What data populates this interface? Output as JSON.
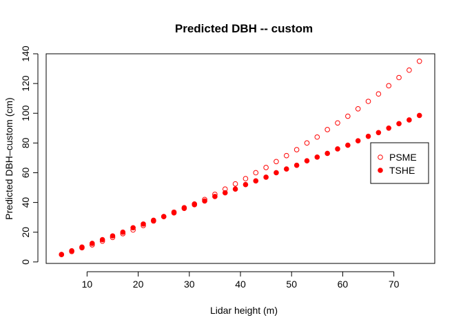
{
  "chart_data": {
    "type": "scatter",
    "title": "Predicted DBH -- custom",
    "xlabel": "Lidar height (m)",
    "ylabel": "Predicted DBH–custom (cm)",
    "xlim": [
      2,
      78
    ],
    "ylim": [
      -1,
      140
    ],
    "xticks": [
      10,
      20,
      30,
      40,
      50,
      60,
      70
    ],
    "yticks": [
      0,
      20,
      40,
      60,
      80,
      100,
      120,
      140
    ],
    "grid": false,
    "legend_position": "right",
    "x": [
      5,
      7,
      9,
      11,
      13,
      15,
      17,
      19,
      21,
      23,
      25,
      27,
      29,
      31,
      33,
      35,
      37,
      39,
      41,
      43,
      45,
      47,
      49,
      51,
      53,
      55,
      57,
      59,
      61,
      63,
      65,
      67,
      69,
      71,
      73,
      75
    ],
    "series": [
      {
        "name": "PSME",
        "marker": "open-circle",
        "color": "#ff0000",
        "values": [
          5,
          7,
          9.5,
          11.5,
          14,
          16.5,
          19,
          21.5,
          24.5,
          27.5,
          30.5,
          33.5,
          36.5,
          39,
          42,
          45.5,
          49,
          52.5,
          56,
          60,
          63.5,
          67.5,
          71.5,
          75.5,
          80,
          84,
          89,
          93.5,
          98,
          103,
          108,
          113,
          118.5,
          124,
          129,
          135
        ]
      },
      {
        "name": "TSHE",
        "marker": "filled-circle",
        "color": "#ff0000",
        "values": [
          5,
          7.5,
          10,
          12.5,
          15,
          17.5,
          20,
          23,
          25.5,
          28,
          30.5,
          33,
          36,
          38.5,
          41,
          44,
          46.5,
          49,
          52,
          54.5,
          57,
          60,
          62.5,
          65,
          68,
          70.5,
          73,
          76,
          78.5,
          81.5,
          84.5,
          87,
          90,
          93,
          95.5,
          98.5
        ]
      }
    ]
  }
}
